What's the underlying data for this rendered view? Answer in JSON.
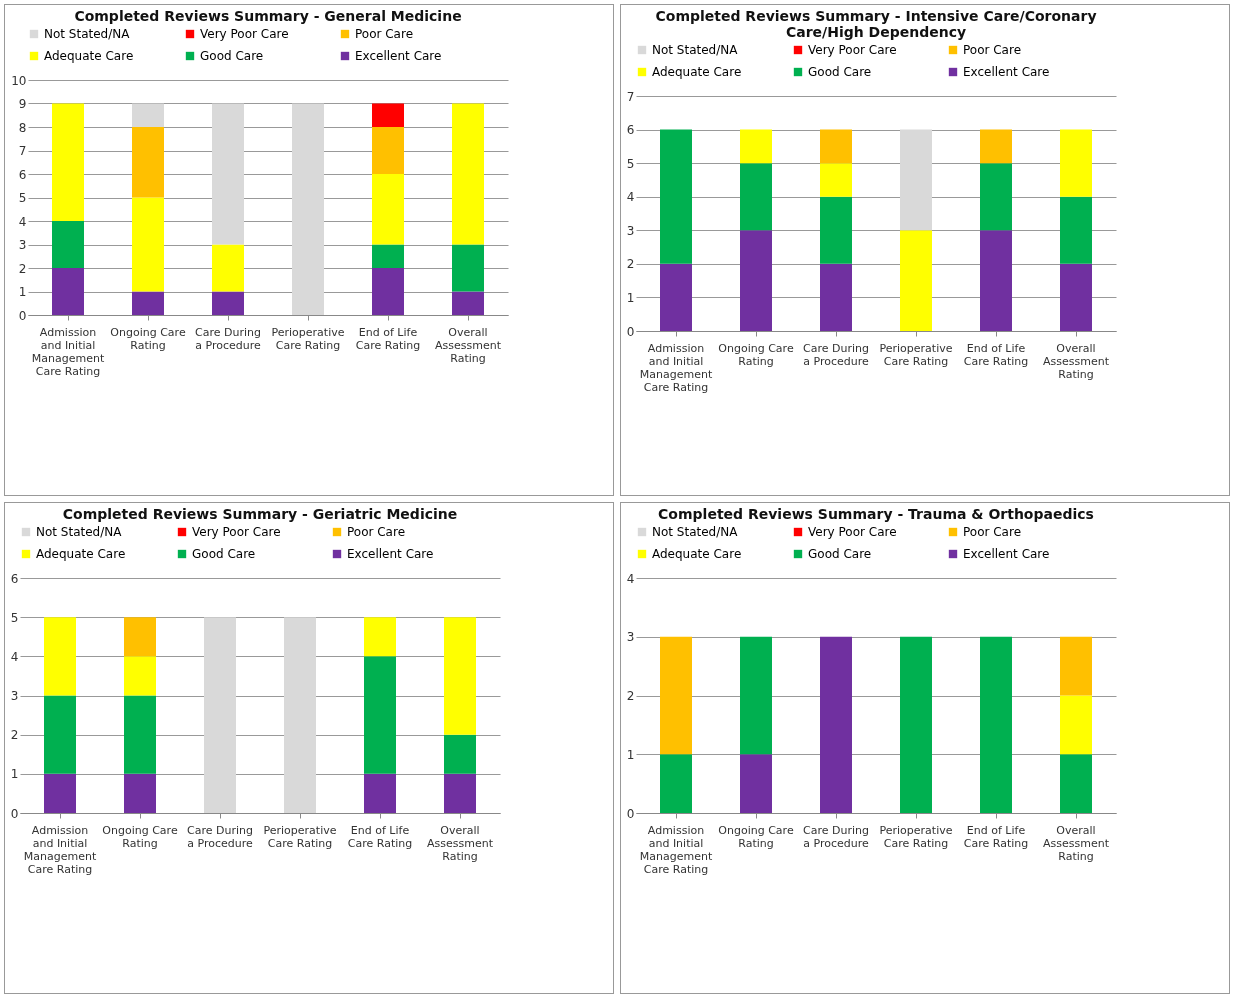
{
  "chart_data": [
    {
      "type": "bar",
      "title": "Completed Reviews Summary - General Medicine",
      "stacked": true,
      "grid": "y",
      "legend": "top",
      "categories": [
        "Admission and Initial Management Care Rating",
        "Ongoing Care Rating",
        "Care During a Procedure",
        "Perioperative Care Rating",
        "End of Life Care Rating",
        "Overall Assessment Rating"
      ],
      "ylim": [
        0,
        10
      ],
      "yticks": [
        0,
        1,
        2,
        3,
        4,
        5,
        6,
        7,
        8,
        9,
        10
      ],
      "series": [
        {
          "name": "Excellent Care",
          "color": "#7030a0",
          "values": [
            2,
            1,
            1,
            0,
            2,
            1
          ]
        },
        {
          "name": "Good Care",
          "color": "#00b050",
          "values": [
            2,
            0,
            0,
            0,
            1,
            2
          ]
        },
        {
          "name": "Adequate Care",
          "color": "#ffff00",
          "values": [
            5,
            4,
            2,
            0,
            3,
            6
          ]
        },
        {
          "name": "Poor Care",
          "color": "#ffc000",
          "values": [
            0,
            3,
            0,
            0,
            2,
            0
          ]
        },
        {
          "name": "Very Poor Care",
          "color": "#ff0000",
          "values": [
            0,
            0,
            0,
            0,
            1,
            0
          ]
        },
        {
          "name": "Not Stated/NA",
          "color": "#d9d9d9",
          "values": [
            0,
            1,
            6,
            9,
            0,
            0
          ]
        }
      ]
    },
    {
      "type": "bar",
      "title": "Completed Reviews Summary - Intensive Care/Coronary Care/High Dependency",
      "stacked": true,
      "grid": "y",
      "legend": "top",
      "categories": [
        "Admission and Initial Management Care Rating",
        "Ongoing Care Rating",
        "Care During a Procedure",
        "Perioperative Care Rating",
        "End of Life Care Rating",
        "Overall Assessment Rating"
      ],
      "ylim": [
        0,
        7
      ],
      "yticks": [
        0,
        1,
        2,
        3,
        4,
        5,
        6,
        7
      ],
      "series": [
        {
          "name": "Excellent Care",
          "color": "#7030a0",
          "values": [
            2,
            3,
            2,
            0,
            3,
            2
          ]
        },
        {
          "name": "Good Care",
          "color": "#00b050",
          "values": [
            4,
            2,
            2,
            0,
            2,
            2
          ]
        },
        {
          "name": "Adequate Care",
          "color": "#ffff00",
          "values": [
            0,
            1,
            1,
            3,
            0,
            2
          ]
        },
        {
          "name": "Poor Care",
          "color": "#ffc000",
          "values": [
            0,
            0,
            1,
            0,
            1,
            0
          ]
        },
        {
          "name": "Very Poor Care",
          "color": "#ff0000",
          "values": [
            0,
            0,
            0,
            0,
            0,
            0
          ]
        },
        {
          "name": "Not Stated/NA",
          "color": "#d9d9d9",
          "values": [
            0,
            0,
            0,
            3,
            0,
            0
          ]
        }
      ]
    },
    {
      "type": "bar",
      "title": "Completed Reviews Summary - Geriatric Medicine",
      "stacked": true,
      "grid": "y",
      "legend": "top",
      "categories": [
        "Admission and Initial Management Care Rating",
        "Ongoing Care Rating",
        "Care During a Procedure",
        "Perioperative Care Rating",
        "End of Life Care Rating",
        "Overall Assessment Rating"
      ],
      "ylim": [
        0,
        6
      ],
      "yticks": [
        0,
        1,
        2,
        3,
        4,
        5,
        6
      ],
      "series": [
        {
          "name": "Excellent Care",
          "color": "#7030a0",
          "values": [
            1,
            1,
            0,
            0,
            1,
            1
          ]
        },
        {
          "name": "Good Care",
          "color": "#00b050",
          "values": [
            2,
            2,
            0,
            0,
            3,
            1
          ]
        },
        {
          "name": "Adequate Care",
          "color": "#ffff00",
          "values": [
            2,
            1,
            0,
            0,
            1,
            3
          ]
        },
        {
          "name": "Poor Care",
          "color": "#ffc000",
          "values": [
            0,
            1,
            0,
            0,
            0,
            0
          ]
        },
        {
          "name": "Very Poor Care",
          "color": "#ff0000",
          "values": [
            0,
            0,
            0,
            0,
            0,
            0
          ]
        },
        {
          "name": "Not Stated/NA",
          "color": "#d9d9d9",
          "values": [
            0,
            0,
            5,
            5,
            0,
            0
          ]
        }
      ]
    },
    {
      "type": "bar",
      "title": "Completed Reviews Summary - Trauma & Orthopaedics",
      "stacked": true,
      "grid": "y",
      "legend": "top",
      "categories": [
        "Admission and Initial Management Care Rating",
        "Ongoing Care Rating",
        "Care During a Procedure",
        "Perioperative Care Rating",
        "End of Life Care Rating",
        "Overall Assessment Rating"
      ],
      "ylim": [
        0,
        4
      ],
      "yticks": [
        0,
        1,
        2,
        3,
        4
      ],
      "series": [
        {
          "name": "Excellent Care",
          "color": "#7030a0",
          "values": [
            0,
            1,
            3,
            0,
            0,
            0
          ]
        },
        {
          "name": "Good Care",
          "color": "#00b050",
          "values": [
            1,
            2,
            0,
            3,
            3,
            1
          ]
        },
        {
          "name": "Adequate Care",
          "color": "#ffff00",
          "values": [
            0,
            0,
            0,
            0,
            0,
            1
          ]
        },
        {
          "name": "Poor Care",
          "color": "#ffc000",
          "values": [
            2,
            0,
            0,
            0,
            0,
            1
          ]
        },
        {
          "name": "Very Poor Care",
          "color": "#ff0000",
          "values": [
            0,
            0,
            0,
            0,
            0,
            0
          ]
        },
        {
          "name": "Not Stated/NA",
          "color": "#d9d9d9",
          "values": [
            0,
            0,
            0,
            0,
            0,
            0
          ]
        }
      ]
    }
  ]
}
